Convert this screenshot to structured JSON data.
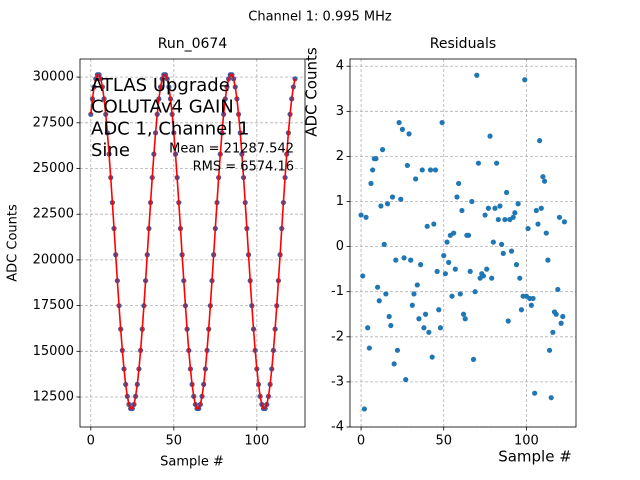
{
  "title": "Channel 1: 0.995 MHz",
  "chart_data": [
    {
      "type": "line",
      "title": "Run_0674",
      "xlabel": "Sample #",
      "ylabel": "ADC Counts",
      "annotations": [
        "ATLAS Upgrade",
        "COLUTAv4 GAIN",
        "ADC 1, Channel 1",
        "Sine"
      ],
      "stats": [
        "Mean = 21287.542",
        "RMS = 6574.16"
      ],
      "x": [
        0,
        1,
        2,
        3,
        4,
        5,
        6,
        7,
        8,
        9,
        10,
        11,
        12,
        13,
        14,
        15,
        16,
        17,
        18,
        19,
        20,
        21,
        22,
        23,
        24,
        25,
        26,
        27,
        28,
        29,
        30,
        31,
        32,
        33,
        34,
        35,
        36,
        37,
        38,
        39,
        40,
        41,
        42,
        43,
        44,
        45,
        46,
        47,
        48,
        49,
        50,
        51,
        52,
        53,
        54,
        55,
        56,
        57,
        58,
        59,
        60,
        61,
        62,
        63,
        64,
        65,
        66,
        67,
        68,
        69,
        70,
        71,
        72,
        73,
        74,
        75,
        76,
        77,
        78,
        79,
        80,
        81,
        82,
        83,
        84,
        85,
        86,
        87,
        88,
        89,
        90,
        91,
        92,
        93,
        94,
        95,
        96,
        97,
        98,
        99,
        100,
        101,
        102,
        103,
        104,
        105,
        106,
        107,
        108,
        109,
        110,
        111,
        112,
        113,
        114,
        115,
        116,
        117,
        118,
        119,
        120,
        121,
        122,
        123
      ],
      "series": [
        {
          "style": "markers",
          "color": "#3f5aa0",
          "values": [
            27965,
            28810,
            29463,
            29907,
            30132,
            30132,
            29907,
            29463,
            28810,
            27965,
            26949,
            25786,
            24505,
            23138,
            21719,
            20281,
            18862,
            17495,
            16214,
            15051,
            14035,
            13190,
            12537,
            12093,
            11868,
            11868,
            12093,
            12537,
            13190,
            14035,
            15051,
            16214,
            17495,
            18862,
            20281,
            21719,
            23138,
            24505,
            25786,
            26949,
            27965,
            28810,
            29463,
            29907,
            30132,
            30132,
            29907,
            29463,
            28810,
            27965,
            26949,
            25786,
            24505,
            23138,
            21719,
            20281,
            18862,
            17495,
            16214,
            15051,
            14035,
            13190,
            12537,
            12093,
            11868,
            11868,
            12093,
            12537,
            13190,
            14035,
            15051,
            16214,
            17495,
            18862,
            20281,
            21719,
            23138,
            24505,
            25786,
            26949,
            27965,
            28810,
            29463,
            29907,
            30132,
            30132,
            29907,
            29463,
            28810,
            27965,
            26949,
            25786,
            24505,
            23138,
            21719,
            20281,
            18862,
            17495,
            16214,
            15051,
            14035,
            13190,
            12537,
            12093,
            11868,
            11868,
            12093,
            12537,
            13190,
            14035,
            15051,
            16214,
            17495,
            18862,
            20281,
            21719,
            23138,
            24505,
            25786,
            26949,
            27965,
            28810,
            29463,
            29907
          ]
        },
        {
          "style": "line",
          "color": "#ff0000",
          "values": [
            27965,
            28810,
            29463,
            29907,
            30132,
            30132,
            29907,
            29463,
            28810,
            27965,
            26949,
            25786,
            24505,
            23138,
            21719,
            20281,
            18862,
            17495,
            16214,
            15051,
            14035,
            13190,
            12537,
            12093,
            11868,
            11868,
            12093,
            12537,
            13190,
            14035,
            15051,
            16214,
            17495,
            18862,
            20281,
            21719,
            23138,
            24505,
            25786,
            26949,
            27965,
            28810,
            29463,
            29907,
            30132,
            30132,
            29907,
            29463,
            28810,
            27965,
            26949,
            25786,
            24505,
            23138,
            21719,
            20281,
            18862,
            17495,
            16214,
            15051,
            14035,
            13190,
            12537,
            12093,
            11868,
            11868,
            12093,
            12537,
            13190,
            14035,
            15051,
            16214,
            17495,
            18862,
            20281,
            21719,
            23138,
            24505,
            25786,
            26949,
            27965,
            28810,
            29463,
            29907,
            30132,
            30132,
            29907,
            29463,
            28810,
            27965,
            26949,
            25786,
            24505,
            23138,
            21719,
            20281,
            18862,
            17495,
            16214,
            15051,
            14035,
            13190,
            12537,
            12093,
            11868,
            11868,
            12093,
            12537,
            13190,
            14035,
            15051,
            16214,
            17495,
            18862,
            20281,
            21719,
            23138,
            24505,
            25786,
            26949,
            27965,
            28810,
            29463,
            29907
          ]
        }
      ],
      "xlim": [
        -6.5,
        129
      ],
      "ylim": [
        10860,
        30990
      ],
      "xticks": [
        0,
        50,
        100
      ],
      "yticks": [
        12500,
        15000,
        17500,
        20000,
        22500,
        25000,
        27500,
        30000
      ],
      "grid": true
    },
    {
      "type": "scatter",
      "title": "Residuals",
      "xlabel": "Sample #",
      "ylabel": "ADC Counts",
      "x": [
        0,
        1,
        2,
        3,
        4,
        5,
        6,
        7,
        8,
        9,
        10,
        11,
        12,
        13,
        14,
        15,
        16,
        17,
        18,
        19,
        20,
        21,
        22,
        23,
        24,
        25,
        26,
        27,
        28,
        29,
        30,
        31,
        32,
        33,
        34,
        35,
        36,
        37,
        38,
        39,
        40,
        41,
        42,
        43,
        44,
        45,
        46,
        47,
        48,
        49,
        50,
        51,
        52,
        53,
        54,
        55,
        56,
        57,
        58,
        59,
        60,
        61,
        62,
        63,
        64,
        65,
        66,
        67,
        68,
        69,
        70,
        71,
        72,
        73,
        74,
        75,
        76,
        77,
        78,
        79,
        80,
        81,
        82,
        83,
        84,
        85,
        86,
        87,
        88,
        89,
        90,
        91,
        92,
        93,
        94,
        95,
        96,
        97,
        98,
        99,
        100,
        101,
        102,
        103,
        104,
        105,
        106,
        107,
        108,
        109,
        110,
        111,
        112,
        113,
        114,
        115,
        116,
        117,
        118,
        119,
        120,
        121,
        122,
        123
      ],
      "series": [
        {
          "style": "markers",
          "color": "#1f77b4",
          "values": [
            0.7,
            -0.65,
            -3.6,
            0.65,
            -1.8,
            -2.25,
            1.4,
            1.7,
            1.95,
            1.95,
            -0.9,
            -1.2,
            0.9,
            2.15,
            0.05,
            -1.05,
            0.95,
            -1.55,
            -1.75,
            1.1,
            -2.6,
            -0.3,
            -2.3,
            2.75,
            1.05,
            2.6,
            -0.25,
            -2.95,
            1.8,
            2.5,
            -0.3,
            -1.3,
            -1.05,
            1.5,
            -0.85,
            -1.6,
            -0.4,
            1.7,
            -1.8,
            -1.5,
            0.45,
            -1.9,
            1.7,
            -2.45,
            0.5,
            1.7,
            -0.55,
            -1.4,
            -1.8,
            2.75,
            -0.2,
            -0.6,
            0.1,
            -0.35,
            0.25,
            -1.1,
            0.3,
            -0.5,
            1.1,
            1.4,
            -1.05,
            0.8,
            -1.5,
            -1.6,
            0.25,
            0.25,
            -0.55,
            1.0,
            -2.5,
            -1.0,
            3.8,
            1.85,
            -0.7,
            -0.6,
            -0.65,
            0.7,
            -0.5,
            0.85,
            2.45,
            -0.7,
            0.1,
            0.85,
            1.85,
            0.6,
            0.9,
            0.05,
            -0.15,
            0.6,
            1.2,
            -1.65,
            0.6,
            -0.1,
            0.65,
            0.75,
            -0.4,
            0.95,
            -0.7,
            -1.4,
            -1.1,
            3.7,
            -1.1,
            0.4,
            -1.15,
            -1.3,
            -1.15,
            -3.25,
            0.8,
            0.5,
            2.35,
            0.85,
            1.55,
            1.45,
            0.3,
            -0.3,
            -2.3,
            -3.35,
            -1.9,
            -1.45,
            -1.5,
            -0.95,
            0.65,
            -1.7,
            -1.55,
            0.55
          ]
        }
      ],
      "xlim": [
        -6.7,
        130
      ],
      "ylim": [
        -4,
        4.16
      ],
      "xticks": [
        0,
        50,
        100
      ],
      "yticks": [
        -4,
        -3,
        -2,
        -1,
        0,
        1,
        2,
        3,
        4
      ],
      "grid": true
    }
  ]
}
